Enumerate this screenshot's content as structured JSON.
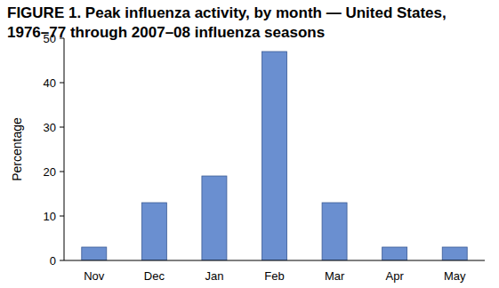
{
  "chart_data": {
    "type": "bar",
    "title": [
      "FIGURE 1. Peak influenza activity, by month — United States,",
      "1976–77 through 2007–08 influenza seasons"
    ],
    "y_label": "Percentage",
    "categories": [
      "Nov",
      "Dec",
      "Jan",
      "Feb",
      "Mar",
      "Apr",
      "May"
    ],
    "values": [
      3,
      13,
      19,
      47,
      13,
      3,
      3
    ],
    "color": "#6a8fd0",
    "ylim": [
      0,
      50
    ],
    "yticks": [
      0,
      10,
      20,
      30,
      40,
      50
    ],
    "grid": false
  }
}
